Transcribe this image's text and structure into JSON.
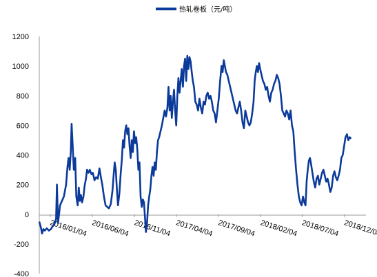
{
  "chart_data": {
    "type": "line",
    "legend": {
      "label": "热轧卷板（元/吨）",
      "position": "top-center"
    },
    "title": "",
    "xlabel": "",
    "ylabel": "",
    "ylim": [
      -400,
      1200
    ],
    "yticks": [
      -400,
      -200,
      0,
      200,
      400,
      600,
      800,
      1000,
      1200
    ],
    "xlim": [
      "2015-11-25",
      "2019-02-20"
    ],
    "xticks": [
      "2016/01/04",
      "2016/06/04",
      "2016/11/04",
      "2017/04/04",
      "2017/09/04",
      "2018/02/04",
      "2018/07/04",
      "2018/12/04"
    ],
    "xtick_dates": [
      "2016-01-04",
      "2016-06-04",
      "2016-11-04",
      "2017-04-04",
      "2017-09-04",
      "2018-02-04",
      "2018-07-04",
      "2018-12-04"
    ],
    "grid": false,
    "series": [
      {
        "name": "热轧卷板（元/吨）",
        "color": "#0B3A9A",
        "points": [
          [
            "2015-11-25",
            -50
          ],
          [
            "2015-12-01",
            -90
          ],
          [
            "2015-12-05",
            -130
          ],
          [
            "2015-12-10",
            -100
          ],
          [
            "2015-12-15",
            -110
          ],
          [
            "2015-12-22",
            -95
          ],
          [
            "2015-12-30",
            -110
          ],
          [
            "2016-01-06",
            -100
          ],
          [
            "2016-01-13",
            -80
          ],
          [
            "2016-01-20",
            -60
          ],
          [
            "2016-01-25",
            -30
          ],
          [
            "2016-01-28",
            200
          ],
          [
            "2016-02-01",
            -60
          ],
          [
            "2016-02-08",
            60
          ],
          [
            "2016-02-15",
            90
          ],
          [
            "2016-02-22",
            120
          ],
          [
            "2016-03-01",
            200
          ],
          [
            "2016-03-06",
            320
          ],
          [
            "2016-03-10",
            380
          ],
          [
            "2016-03-14",
            300
          ],
          [
            "2016-03-18",
            420
          ],
          [
            "2016-03-21",
            610
          ],
          [
            "2016-03-25",
            460
          ],
          [
            "2016-03-29",
            300
          ],
          [
            "2016-04-03",
            380
          ],
          [
            "2016-04-07",
            120
          ],
          [
            "2016-04-12",
            60
          ],
          [
            "2016-04-16",
            180
          ],
          [
            "2016-04-20",
            90
          ],
          [
            "2016-04-24",
            130
          ],
          [
            "2016-04-28",
            80
          ],
          [
            "2016-05-03",
            120
          ],
          [
            "2016-05-07",
            190
          ],
          [
            "2016-05-12",
            240
          ],
          [
            "2016-05-16",
            300
          ],
          [
            "2016-05-21",
            280
          ],
          [
            "2016-05-26",
            300
          ],
          [
            "2016-06-01",
            270
          ],
          [
            "2016-06-06",
            280
          ],
          [
            "2016-06-12",
            230
          ],
          [
            "2016-06-18",
            250
          ],
          [
            "2016-06-24",
            240
          ],
          [
            "2016-06-30",
            310
          ],
          [
            "2016-07-05",
            250
          ],
          [
            "2016-07-10",
            200
          ],
          [
            "2016-07-16",
            120
          ],
          [
            "2016-07-22",
            60
          ],
          [
            "2016-07-28",
            50
          ],
          [
            "2016-08-03",
            40
          ],
          [
            "2016-08-10",
            70
          ],
          [
            "2016-08-16",
            160
          ],
          [
            "2016-08-20",
            260
          ],
          [
            "2016-08-24",
            350
          ],
          [
            "2016-08-28",
            300
          ],
          [
            "2016-09-01",
            170
          ],
          [
            "2016-09-05",
            60
          ],
          [
            "2016-09-10",
            140
          ],
          [
            "2016-09-15",
            280
          ],
          [
            "2016-09-19",
            370
          ],
          [
            "2016-09-23",
            500
          ],
          [
            "2016-09-27",
            450
          ],
          [
            "2016-10-01",
            560
          ],
          [
            "2016-10-05",
            600
          ],
          [
            "2016-10-09",
            540
          ],
          [
            "2016-10-13",
            580
          ],
          [
            "2016-10-17",
            460
          ],
          [
            "2016-10-21",
            380
          ],
          [
            "2016-10-25",
            500
          ],
          [
            "2016-10-29",
            420
          ],
          [
            "2016-11-02",
            560
          ],
          [
            "2016-11-06",
            480
          ],
          [
            "2016-11-10",
            520
          ],
          [
            "2016-11-14",
            440
          ],
          [
            "2016-11-18",
            300
          ],
          [
            "2016-11-22",
            350
          ],
          [
            "2016-11-26",
            120
          ],
          [
            "2016-11-30",
            50
          ],
          [
            "2016-12-04",
            100
          ],
          [
            "2016-12-08",
            80
          ],
          [
            "2016-12-12",
            -30
          ],
          [
            "2016-12-15",
            -120
          ],
          [
            "2016-12-19",
            -60
          ],
          [
            "2016-12-23",
            60
          ],
          [
            "2016-12-27",
            120
          ],
          [
            "2016-12-31",
            170
          ],
          [
            "2017-01-04",
            260
          ],
          [
            "2017-01-08",
            320
          ],
          [
            "2017-01-12",
            260
          ],
          [
            "2017-01-16",
            350
          ],
          [
            "2017-01-20",
            300
          ],
          [
            "2017-01-24",
            420
          ],
          [
            "2017-01-28",
            500
          ],
          [
            "2017-02-01",
            520
          ],
          [
            "2017-02-06",
            560
          ],
          [
            "2017-02-11",
            600
          ],
          [
            "2017-02-16",
            650
          ],
          [
            "2017-02-21",
            700
          ],
          [
            "2017-02-26",
            660
          ],
          [
            "2017-03-03",
            720
          ],
          [
            "2017-03-07",
            860
          ],
          [
            "2017-03-11",
            700
          ],
          [
            "2017-03-15",
            800
          ],
          [
            "2017-03-19",
            650
          ],
          [
            "2017-03-23",
            760
          ],
          [
            "2017-03-27",
            840
          ],
          [
            "2017-03-31",
            700
          ],
          [
            "2017-04-04",
            600
          ],
          [
            "2017-04-08",
            800
          ],
          [
            "2017-04-12",
            920
          ],
          [
            "2017-04-16",
            820
          ],
          [
            "2017-04-20",
            900
          ],
          [
            "2017-04-24",
            980
          ],
          [
            "2017-04-28",
            860
          ],
          [
            "2017-05-02",
            1000
          ],
          [
            "2017-05-06",
            1050
          ],
          [
            "2017-05-10",
            900
          ],
          [
            "2017-05-14",
            1070
          ],
          [
            "2017-05-18",
            980
          ],
          [
            "2017-05-22",
            1060
          ],
          [
            "2017-05-26",
            1030
          ],
          [
            "2017-05-30",
            960
          ],
          [
            "2017-06-03",
            900
          ],
          [
            "2017-06-07",
            860
          ],
          [
            "2017-06-12",
            760
          ],
          [
            "2017-06-17",
            740
          ],
          [
            "2017-06-22",
            700
          ],
          [
            "2017-06-27",
            780
          ],
          [
            "2017-07-02",
            720
          ],
          [
            "2017-07-07",
            680
          ],
          [
            "2017-07-12",
            760
          ],
          [
            "2017-07-17",
            740
          ],
          [
            "2017-07-22",
            800
          ],
          [
            "2017-07-27",
            820
          ],
          [
            "2017-08-01",
            780
          ],
          [
            "2017-08-06",
            800
          ],
          [
            "2017-08-11",
            760
          ],
          [
            "2017-08-16",
            700
          ],
          [
            "2017-08-21",
            680
          ],
          [
            "2017-08-26",
            620
          ],
          [
            "2017-08-31",
            700
          ],
          [
            "2017-09-05",
            780
          ],
          [
            "2017-09-10",
            900
          ],
          [
            "2017-09-15",
            1000
          ],
          [
            "2017-09-19",
            960
          ],
          [
            "2017-09-23",
            1040
          ],
          [
            "2017-09-27",
            1000
          ],
          [
            "2017-10-01",
            960
          ],
          [
            "2017-10-06",
            940
          ],
          [
            "2017-10-11",
            900
          ],
          [
            "2017-10-16",
            860
          ],
          [
            "2017-10-21",
            820
          ],
          [
            "2017-10-26",
            780
          ],
          [
            "2017-10-31",
            740
          ],
          [
            "2017-11-05",
            700
          ],
          [
            "2017-11-10",
            680
          ],
          [
            "2017-11-15",
            720
          ],
          [
            "2017-11-20",
            760
          ],
          [
            "2017-11-25",
            700
          ],
          [
            "2017-11-30",
            620
          ],
          [
            "2017-12-05",
            580
          ],
          [
            "2017-12-10",
            700
          ],
          [
            "2017-12-15",
            660
          ],
          [
            "2017-12-20",
            620
          ],
          [
            "2017-12-25",
            600
          ],
          [
            "2017-12-30",
            620
          ],
          [
            "2018-01-04",
            680
          ],
          [
            "2018-01-09",
            760
          ],
          [
            "2018-01-13",
            900
          ],
          [
            "2018-01-17",
            960
          ],
          [
            "2018-01-21",
            1000
          ],
          [
            "2018-01-25",
            960
          ],
          [
            "2018-01-29",
            1020
          ],
          [
            "2018-02-02",
            980
          ],
          [
            "2018-02-07",
            940
          ],
          [
            "2018-02-12",
            900
          ],
          [
            "2018-02-17",
            880
          ],
          [
            "2018-02-22",
            840
          ],
          [
            "2018-02-27",
            860
          ],
          [
            "2018-03-04",
            800
          ],
          [
            "2018-03-09",
            760
          ],
          [
            "2018-03-14",
            820
          ],
          [
            "2018-03-19",
            840
          ],
          [
            "2018-03-24",
            880
          ],
          [
            "2018-03-29",
            900
          ],
          [
            "2018-04-03",
            940
          ],
          [
            "2018-04-08",
            920
          ],
          [
            "2018-04-13",
            880
          ],
          [
            "2018-04-18",
            800
          ],
          [
            "2018-04-23",
            700
          ],
          [
            "2018-04-28",
            680
          ],
          [
            "2018-05-03",
            660
          ],
          [
            "2018-05-08",
            700
          ],
          [
            "2018-05-13",
            680
          ],
          [
            "2018-05-18",
            640
          ],
          [
            "2018-05-23",
            700
          ],
          [
            "2018-05-28",
            600
          ],
          [
            "2018-06-02",
            560
          ],
          [
            "2018-06-07",
            420
          ],
          [
            "2018-06-12",
            300
          ],
          [
            "2018-06-17",
            200
          ],
          [
            "2018-06-22",
            120
          ],
          [
            "2018-06-27",
            80
          ],
          [
            "2018-07-02",
            60
          ],
          [
            "2018-07-07",
            120
          ],
          [
            "2018-07-12",
            80
          ],
          [
            "2018-07-16",
            60
          ],
          [
            "2018-07-20",
            220
          ],
          [
            "2018-07-24",
            300
          ],
          [
            "2018-07-28",
            360
          ],
          [
            "2018-08-01",
            380
          ],
          [
            "2018-08-05",
            340
          ],
          [
            "2018-08-10",
            280
          ],
          [
            "2018-08-15",
            220
          ],
          [
            "2018-08-20",
            180
          ],
          [
            "2018-08-25",
            240
          ],
          [
            "2018-08-30",
            260
          ],
          [
            "2018-09-04",
            200
          ],
          [
            "2018-09-09",
            240
          ],
          [
            "2018-09-14",
            280
          ],
          [
            "2018-09-19",
            300
          ],
          [
            "2018-09-24",
            260
          ],
          [
            "2018-09-29",
            220
          ],
          [
            "2018-10-04",
            240
          ],
          [
            "2018-10-09",
            200
          ],
          [
            "2018-10-14",
            150
          ],
          [
            "2018-10-19",
            180
          ],
          [
            "2018-10-24",
            260
          ],
          [
            "2018-10-29",
            290
          ],
          [
            "2018-11-03",
            250
          ],
          [
            "2018-11-08",
            230
          ],
          [
            "2018-11-13",
            260
          ],
          [
            "2018-11-18",
            300
          ],
          [
            "2018-11-23",
            380
          ],
          [
            "2018-11-28",
            400
          ],
          [
            "2018-12-03",
            460
          ],
          [
            "2018-12-08",
            520
          ],
          [
            "2018-12-13",
            540
          ],
          [
            "2018-12-18",
            500
          ],
          [
            "2018-12-23",
            520
          ],
          [
            "2018-12-28",
            510
          ]
        ]
      }
    ]
  }
}
